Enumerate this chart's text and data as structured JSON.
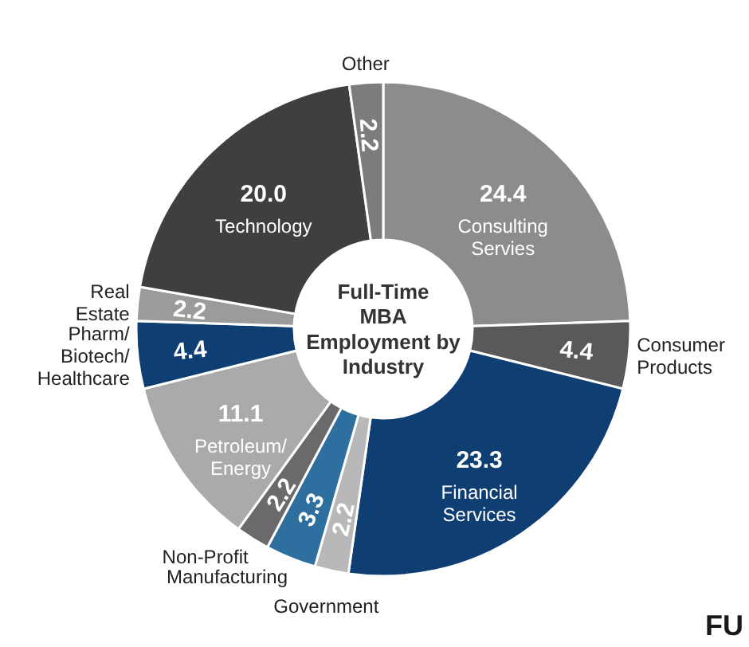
{
  "chart_data": {
    "type": "donut",
    "title": "Full-Time\nMBA\nEmployment by\nIndustry",
    "categories": [
      "Consulting\nServies",
      "Consumer\nProducts",
      "Financial\nServices",
      "Government",
      "Manufacturing",
      "Non-Profit",
      "Petroleum/\nEnergy",
      "Pharm/\nBiotech/\nHealthcare",
      "Real\nEstate",
      "Technology",
      "Other"
    ],
    "values": [
      24.4,
      4.4,
      23.3,
      2.2,
      3.3,
      2.2,
      11.1,
      4.4,
      2.2,
      20.0,
      2.2
    ],
    "value_labels": [
      "24.4",
      "4.4",
      "23.3",
      "2.2",
      "3.3",
      "2.2",
      "11.1",
      "4.4",
      "2.2",
      "20.0",
      "2.2"
    ],
    "colors": [
      "#8c8c8e",
      "#59595b",
      "#0e3e72",
      "#b8b8ba",
      "#2e6f9f",
      "#6a6a6c",
      "#aaaaac",
      "#0e3e72",
      "#9b9b9d",
      "#3f3f41",
      "#7c7c7f"
    ],
    "annotations": [
      "FU"
    ]
  }
}
